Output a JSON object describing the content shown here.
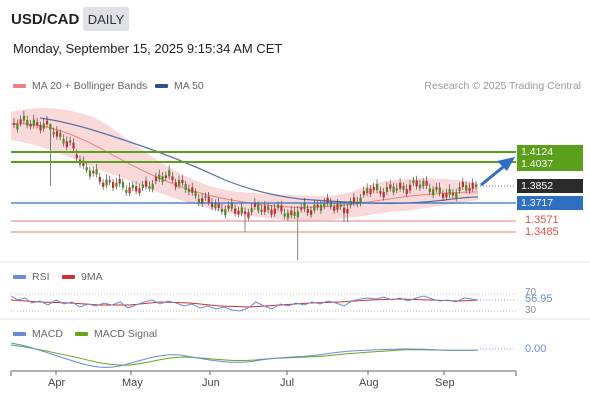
{
  "header": {
    "pair": "USD/CAD",
    "timeframe": "DAILY",
    "timestamp": "Monday, September 15, 2025 9:15:34 AM CET"
  },
  "legend": {
    "ma_bb": "MA 20 + Bollinger Bands",
    "ma50": "MA 50",
    "credit": "Research © 2025 Trading Central"
  },
  "levels": {
    "r2": "1.4124",
    "r1": "1.4037",
    "last": "1.3852",
    "pivot": "1.3717",
    "s1": "1.3571",
    "s2": "1.3485"
  },
  "rsi": {
    "label": "RSI",
    "ma_label": "9MA",
    "level_high": "70",
    "value": "56.95",
    "level_low": "30"
  },
  "macd": {
    "label": "MACD",
    "signal_label": "MACD Signal",
    "value": "0.00"
  },
  "xaxis": {
    "months": [
      "Apr",
      "May",
      "Jun",
      "Jul",
      "Aug",
      "Sep"
    ]
  },
  "colors": {
    "resistance": "#5aa01a",
    "pivot": "#2e6fc2",
    "support": "#e05050",
    "last": "#2b2b2b",
    "bb": "#f5c4c4",
    "ma50": "#5b6f9c",
    "rsi": "#6b8bd8",
    "rsi_ma": "#d03030",
    "macd": "#6b8bd8",
    "macd_signal": "#6aa51f",
    "candle_up": "#4f8a1f",
    "candle_down": "#c03030"
  }
}
